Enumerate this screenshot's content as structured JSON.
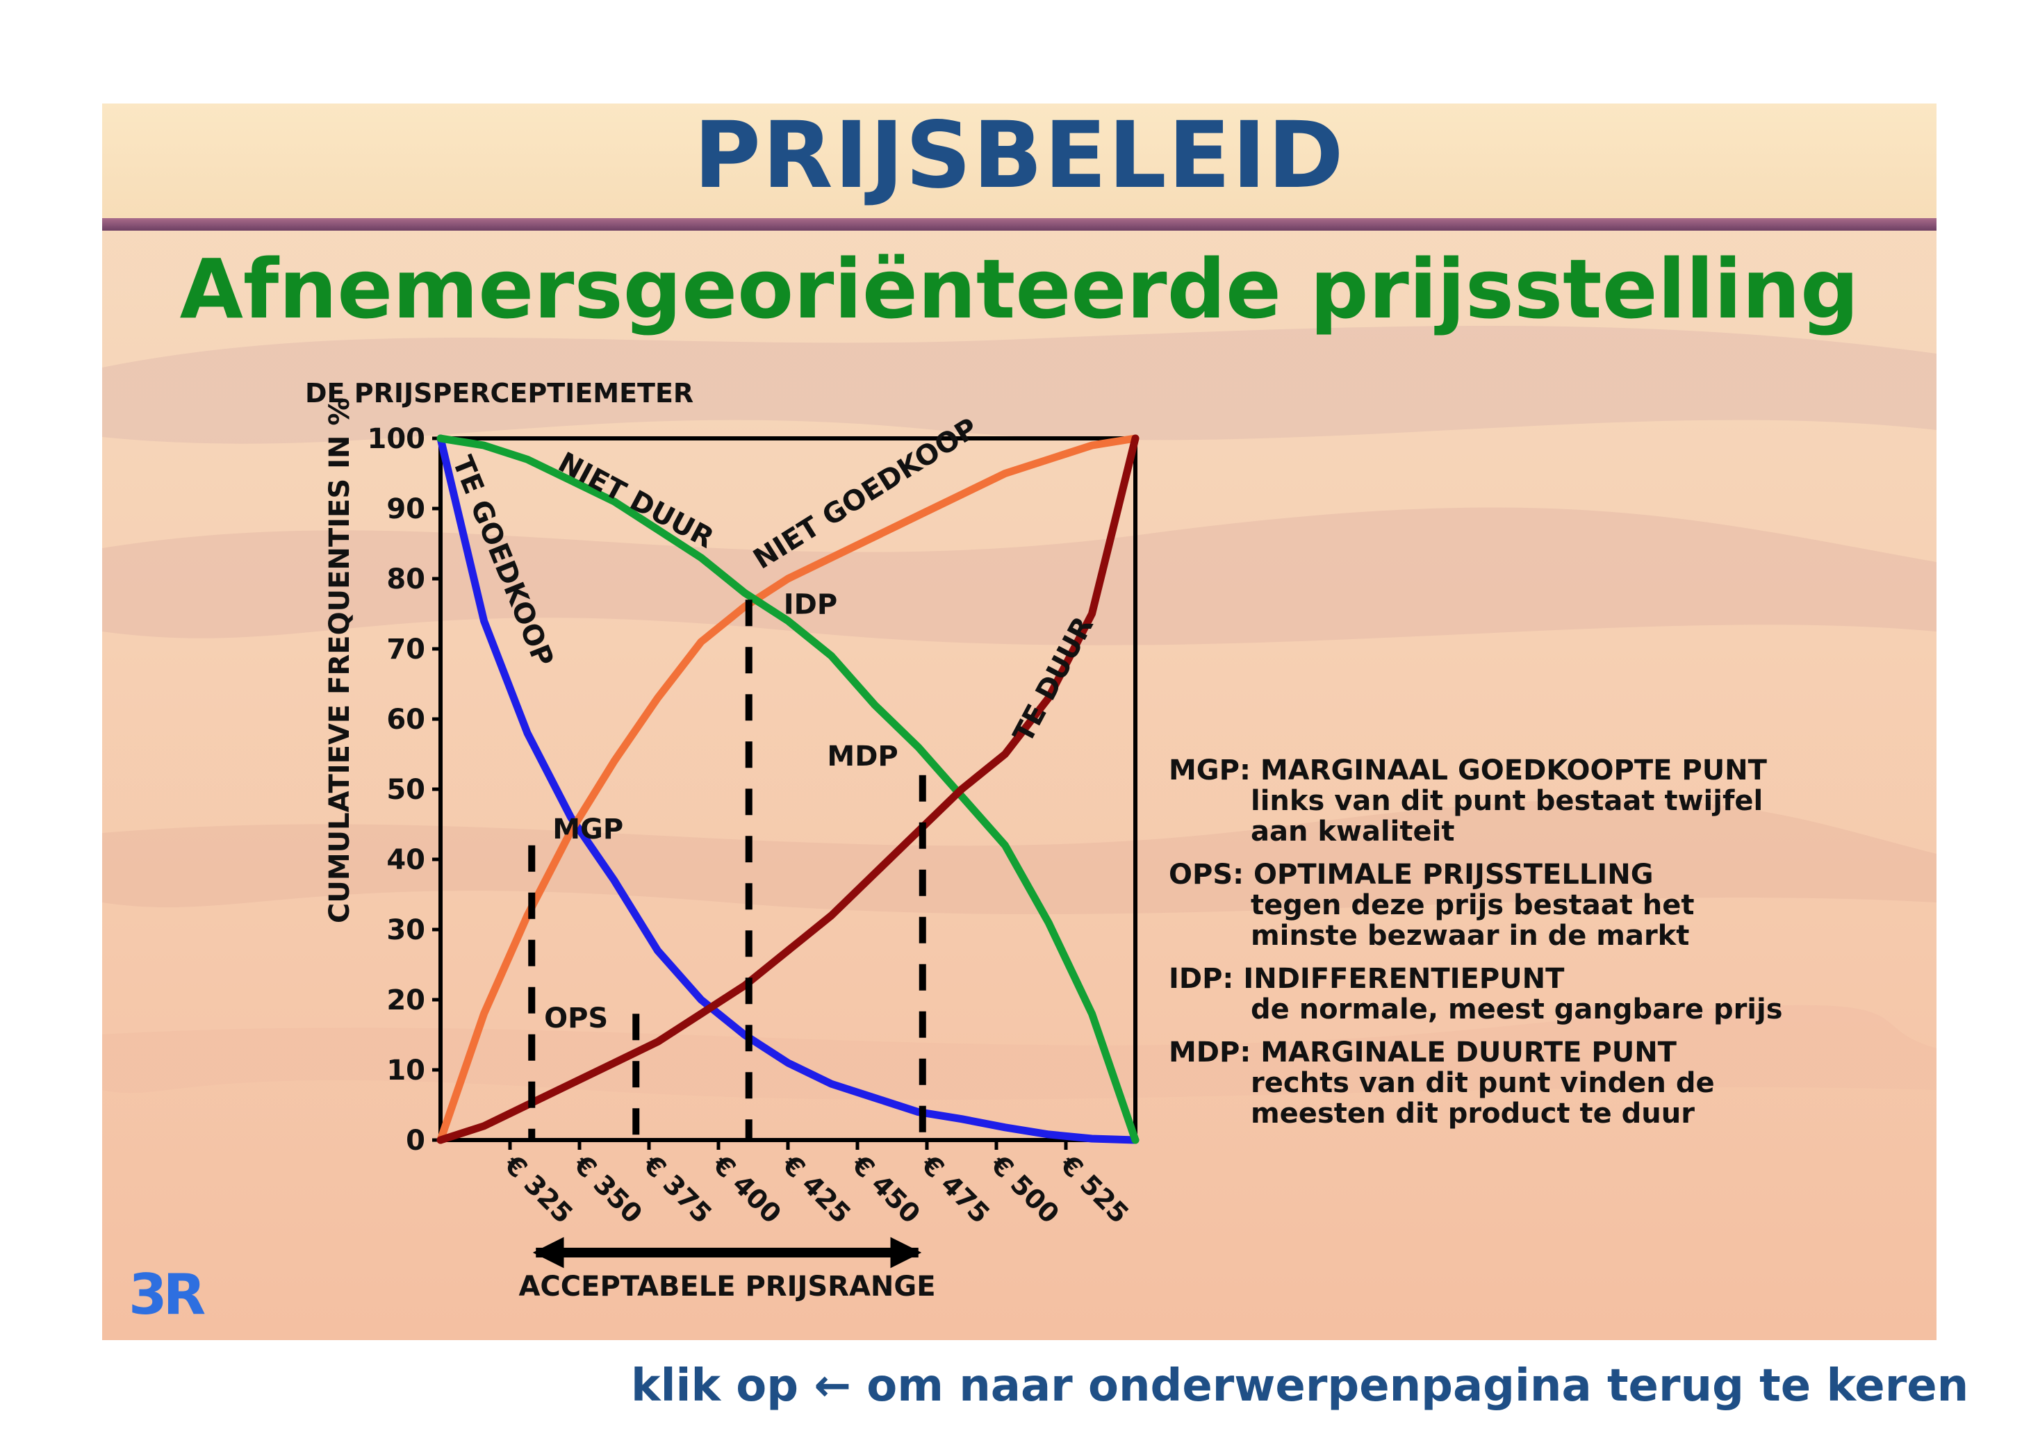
{
  "slide": {
    "title": "PRIJSBELEID",
    "subtitle": "Afnemersgeoriënteerde prijsstelling",
    "logo": "3R"
  },
  "chart_data": {
    "type": "line",
    "title": "DE PRIJSPERCEPTIEMETER",
    "ylabel": "CUMULATIEVE FREQUENTIES IN  %",
    "xlabel": "",
    "ylim": [
      0,
      100
    ],
    "yticks": [
      "0",
      "10",
      "20",
      "30",
      "40",
      "50",
      "60",
      "70",
      "80",
      "90",
      "100"
    ],
    "x_categories": [
      "€ 325",
      "€ 350",
      "€ 375",
      "€ 400",
      "€ 425",
      "€ 450",
      "€ 475",
      "€ 500",
      "€ 525"
    ],
    "series": [
      {
        "name": "TE GOEDKOOP",
        "color": "#1e1ee8",
        "points": [
          [
            0,
            100
          ],
          [
            0.5,
            74
          ],
          [
            1,
            58
          ],
          [
            1.5,
            46
          ],
          [
            2,
            37
          ],
          [
            2.5,
            27
          ],
          [
            3,
            20
          ],
          [
            3.5,
            15
          ],
          [
            4,
            11
          ],
          [
            4.5,
            8
          ],
          [
            5,
            6
          ],
          [
            5.5,
            4
          ],
          [
            6,
            3
          ],
          [
            6.5,
            1.8
          ],
          [
            7,
            0.8
          ],
          [
            7.5,
            0.2
          ],
          [
            8,
            0
          ]
        ]
      },
      {
        "name": "NIET GOEDKOOP",
        "color": "#f27138",
        "points": [
          [
            0,
            0
          ],
          [
            0.5,
            18
          ],
          [
            1,
            32
          ],
          [
            1.5,
            44
          ],
          [
            2,
            54
          ],
          [
            2.5,
            63
          ],
          [
            3,
            71
          ],
          [
            3.5,
            76
          ],
          [
            4,
            80
          ],
          [
            4.5,
            83
          ],
          [
            5,
            86
          ],
          [
            5.5,
            89
          ],
          [
            6,
            92
          ],
          [
            6.5,
            95
          ],
          [
            7,
            97
          ],
          [
            7.5,
            99
          ],
          [
            8,
            100
          ]
        ]
      },
      {
        "name": "NIET DUUR",
        "color": "#12a034",
        "points": [
          [
            0,
            100
          ],
          [
            0.5,
            99
          ],
          [
            1,
            97
          ],
          [
            1.5,
            94
          ],
          [
            2,
            91
          ],
          [
            2.5,
            87
          ],
          [
            3,
            83
          ],
          [
            3.5,
            78
          ],
          [
            4,
            74
          ],
          [
            4.5,
            69
          ],
          [
            5,
            62
          ],
          [
            5.5,
            56
          ],
          [
            6,
            49
          ],
          [
            6.5,
            42
          ],
          [
            7,
            31
          ],
          [
            7.5,
            18
          ],
          [
            8,
            0
          ]
        ]
      },
      {
        "name": "TE DUUR",
        "color": "#8c0a0a",
        "points": [
          [
            0,
            0
          ],
          [
            0.5,
            2
          ],
          [
            1,
            5
          ],
          [
            1.5,
            8
          ],
          [
            2,
            11
          ],
          [
            2.5,
            14
          ],
          [
            3,
            18
          ],
          [
            3.5,
            22
          ],
          [
            4,
            27
          ],
          [
            4.5,
            32
          ],
          [
            5,
            38
          ],
          [
            5.5,
            44
          ],
          [
            6,
            50
          ],
          [
            6.5,
            55
          ],
          [
            7,
            63
          ],
          [
            7.5,
            75
          ],
          [
            8,
            100
          ]
        ]
      }
    ],
    "points_of_interest": [
      {
        "label": "MGP",
        "x": 1.05,
        "y": 42
      },
      {
        "label": "OPS",
        "x": 2.25,
        "y": 18
      },
      {
        "label": "IDP",
        "x": 3.55,
        "y": 77
      },
      {
        "label": "MDP",
        "x": 5.55,
        "y": 52
      }
    ],
    "range_arrow_label": "ACCEPTABELE PRIJSRANGE",
    "grid": false
  },
  "legend": [
    {
      "abbr": "MGP:",
      "name": "MARGINAAL GOEDKOOPTE PUNT",
      "desc": [
        "links van dit punt bestaat twijfel",
        "aan kwaliteit"
      ]
    },
    {
      "abbr": "OPS:",
      "name": "OPTIMALE PRIJSSTELLING",
      "desc": [
        "tegen deze prijs bestaat het",
        "minste bezwaar in de markt"
      ]
    },
    {
      "abbr": "IDP:",
      "name": "INDIFFERENTIEPUNT",
      "desc": [
        "de normale, meest gangbare prijs"
      ]
    },
    {
      "abbr": "MDP:",
      "name": "MARGINALE DUURTE PUNT",
      "desc": [
        "rechts van dit punt vinden de",
        "meesten dit product te duur"
      ]
    }
  ],
  "footer": {
    "text_before": "klik op",
    "arrow": "←",
    "text_after": "om naar onderwerpenpagina terug te keren"
  }
}
